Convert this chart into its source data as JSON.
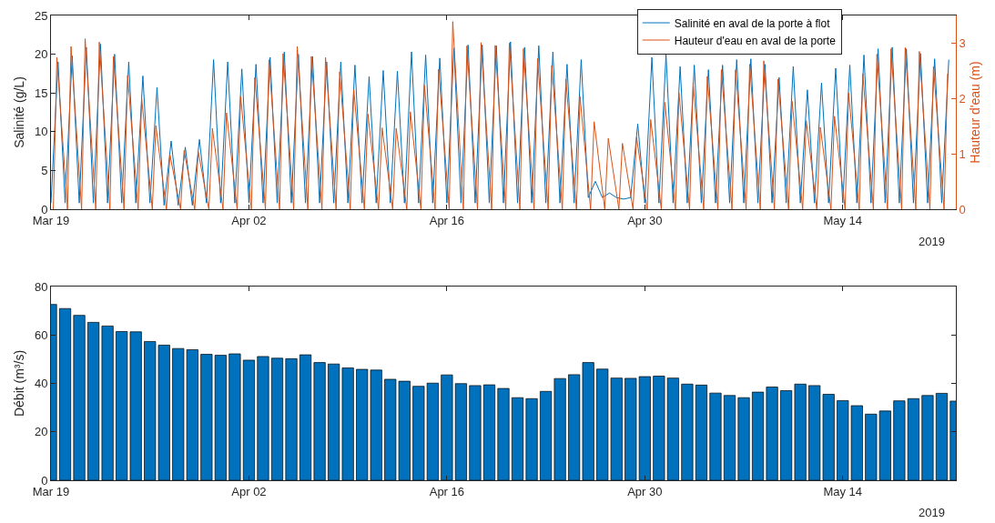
{
  "chart_data": [
    {
      "type": "line",
      "ylabel": "Salinité (g/L)",
      "y2label": "Hauteur d'eau (m)",
      "legend": "top right",
      "annotations": [
        "2019"
      ],
      "xlim": [
        "2019-03-19",
        "2019-05-22"
      ],
      "xticks": [
        {
          "value": "2019-03-19",
          "label": "Mar 19"
        },
        {
          "value": "2019-04-02",
          "label": "Apr 02"
        },
        {
          "value": "2019-04-16",
          "label": "Apr 16"
        },
        {
          "value": "2019-04-30",
          "label": "Apr 30"
        },
        {
          "value": "2019-05-14",
          "label": "May 14"
        }
      ],
      "ylim": [
        0,
        25
      ],
      "yticks": [
        0,
        5,
        10,
        15,
        20,
        25
      ],
      "y2lim": [
        0,
        3.5
      ],
      "y2ticks": [
        0,
        1,
        2,
        3
      ],
      "x": [
        "2019-03-19T00:00",
        "2019-03-19T12:00",
        "2019-03-20T00:00",
        "2019-03-20T12:00",
        "2019-03-21T00:00",
        "2019-03-21T12:00",
        "2019-03-22T00:00",
        "2019-03-22T12:00",
        "2019-03-23T00:00",
        "2019-03-23T12:00",
        "2019-03-24T00:00",
        "2019-03-24T12:00",
        "2019-03-25T00:00",
        "2019-03-25T12:00",
        "2019-03-26T00:00",
        "2019-03-26T12:00",
        "2019-03-27T00:00",
        "2019-03-27T12:00",
        "2019-03-28T00:00",
        "2019-03-28T12:00",
        "2019-03-29T00:00",
        "2019-03-29T12:00",
        "2019-03-30T00:00",
        "2019-03-30T12:00",
        "2019-03-31T00:00",
        "2019-03-31T12:00",
        "2019-04-01T00:00",
        "2019-04-01T12:00",
        "2019-04-02T00:00",
        "2019-04-02T12:00",
        "2019-04-03T00:00",
        "2019-04-03T12:00",
        "2019-04-04T00:00",
        "2019-04-04T12:00",
        "2019-04-05T00:00",
        "2019-04-05T12:00",
        "2019-04-06T00:00",
        "2019-04-06T12:00",
        "2019-04-07T00:00",
        "2019-04-07T12:00",
        "2019-04-08T00:00",
        "2019-04-08T12:00",
        "2019-04-09T00:00",
        "2019-04-09T12:00",
        "2019-04-10T00:00",
        "2019-04-10T12:00",
        "2019-04-11T00:00",
        "2019-04-11T12:00",
        "2019-04-12T00:00",
        "2019-04-12T12:00",
        "2019-04-13T00:00",
        "2019-04-13T12:00",
        "2019-04-14T00:00",
        "2019-04-14T12:00",
        "2019-04-15T00:00",
        "2019-04-15T12:00",
        "2019-04-16T00:00",
        "2019-04-16T12:00",
        "2019-04-17T00:00",
        "2019-04-17T12:00",
        "2019-04-18T00:00",
        "2019-04-18T12:00",
        "2019-04-19T00:00",
        "2019-04-19T12:00",
        "2019-04-20T00:00",
        "2019-04-20T12:00",
        "2019-04-21T00:00",
        "2019-04-21T12:00",
        "2019-04-22T00:00",
        "2019-04-22T12:00",
        "2019-04-23T00:00",
        "2019-04-23T12:00",
        "2019-04-24T00:00",
        "2019-04-24T12:00",
        "2019-04-25T00:00",
        "2019-04-25T12:00",
        "2019-04-26T00:00",
        "2019-04-26T12:00",
        "2019-04-27T00:00",
        "2019-04-27T12:00",
        "2019-04-28T00:00",
        "2019-04-28T12:00",
        "2019-04-29T00:00",
        "2019-04-29T12:00",
        "2019-04-30T00:00",
        "2019-04-30T12:00",
        "2019-05-01T00:00",
        "2019-05-01T12:00",
        "2019-05-02T00:00",
        "2019-05-02T12:00",
        "2019-05-03T00:00",
        "2019-05-03T12:00",
        "2019-05-04T00:00",
        "2019-05-04T12:00",
        "2019-05-05T00:00",
        "2019-05-05T12:00",
        "2019-05-06T00:00",
        "2019-05-06T12:00",
        "2019-05-07T00:00",
        "2019-05-07T12:00",
        "2019-05-08T00:00",
        "2019-05-08T12:00",
        "2019-05-09T00:00",
        "2019-05-09T12:00",
        "2019-05-10T00:00",
        "2019-05-10T12:00",
        "2019-05-11T00:00",
        "2019-05-11T12:00",
        "2019-05-12T00:00",
        "2019-05-12T12:00",
        "2019-05-13T00:00",
        "2019-05-13T12:00",
        "2019-05-14T00:00",
        "2019-05-14T12:00",
        "2019-05-15T00:00",
        "2019-05-15T12:00",
        "2019-05-16T00:00",
        "2019-05-16T12:00",
        "2019-05-17T00:00",
        "2019-05-17T12:00",
        "2019-05-18T00:00",
        "2019-05-18T12:00",
        "2019-05-19T00:00",
        "2019-05-19T12:00",
        "2019-05-20T00:00",
        "2019-05-20T12:00",
        "2019-05-21T00:00",
        "2019-05-21T12:00"
      ],
      "series": [
        {
          "name": "Salinité en aval de la porte à flot",
          "color": "#0072bd",
          "values": [
            0.8,
            19,
            0.8,
            19.8,
            0.8,
            20.9,
            0.8,
            21.3,
            0.8,
            20,
            0.8,
            19,
            0.8,
            17.2,
            0.8,
            15.7,
            0.5,
            8.8,
            0.5,
            8,
            0.5,
            9,
            0.8,
            19.3,
            0.8,
            19,
            0.8,
            18.1,
            0.8,
            18.7,
            0.8,
            19.6,
            0.8,
            20.3,
            0.8,
            20,
            0.8,
            19.7,
            0.8,
            19,
            0.8,
            19,
            0.8,
            18.6,
            0.8,
            17.1,
            0.8,
            17.9,
            0.8,
            17.8,
            0.8,
            20.3,
            0.8,
            19.9,
            0.8,
            19.5,
            0.8,
            20.8,
            0.8,
            21.2,
            0.8,
            21.2,
            0.8,
            21.1,
            0.8,
            21.6,
            0.8,
            20.9,
            0.8,
            21.1,
            0.8,
            20.3,
            0.8,
            18.7,
            0.8,
            19.3,
            1.5,
            3.6,
            1.5,
            2.1,
            1.5,
            1.3,
            1.5,
            11,
            0.8,
            19.6,
            0.8,
            20,
            0.8,
            18.4,
            0.8,
            18.6,
            0.8,
            18,
            0.8,
            18.6,
            0.8,
            19.3,
            0.8,
            19.4,
            0.8,
            18.7,
            0.8,
            17,
            0.8,
            18.4,
            0.8,
            15.4,
            0.8,
            16.3,
            0.8,
            18.2,
            0.8,
            18.6,
            0.8,
            19.9,
            0.8,
            20.7,
            0.8,
            20.9,
            0.8,
            20.7,
            0.8,
            20.1,
            0.8,
            19.4,
            0.8,
            19.3
          ]
        },
        {
          "name": "Hauteur d'eau en aval de la porte",
          "color": "#d95319",
          "axis": "y2",
          "x": [
            "2019-03-19T04:00",
            "2019-03-19T10:00",
            "2019-03-20T04:00",
            "2019-03-20T10:00",
            "2019-03-21T04:00",
            "2019-03-21T10:00",
            "2019-03-22T04:00",
            "2019-03-22T10:00",
            "2019-03-23T04:00",
            "2019-03-23T10:00",
            "2019-03-24T04:00",
            "2019-03-24T10:00",
            "2019-03-25T04:00",
            "2019-03-25T10:00",
            "2019-03-26T04:00",
            "2019-03-26T10:00",
            "2019-03-27T04:00",
            "2019-03-27T10:00",
            "2019-03-28T04:00",
            "2019-03-28T10:00",
            "2019-03-29T04:00",
            "2019-03-29T10:00",
            "2019-03-30T04:00",
            "2019-03-30T10:00",
            "2019-03-31T04:00",
            "2019-03-31T10:00",
            "2019-04-01T04:00",
            "2019-04-01T10:00",
            "2019-04-02T04:00",
            "2019-04-02T10:00",
            "2019-04-03T04:00",
            "2019-04-03T10:00",
            "2019-04-04T04:00",
            "2019-04-04T10:00",
            "2019-04-05T04:00",
            "2019-04-05T10:00",
            "2019-04-06T04:00",
            "2019-04-06T10:00",
            "2019-04-07T04:00",
            "2019-04-07T10:00",
            "2019-04-08T04:00",
            "2019-04-08T10:00",
            "2019-04-09T04:00",
            "2019-04-09T10:00",
            "2019-04-10T04:00",
            "2019-04-10T10:00",
            "2019-04-11T04:00",
            "2019-04-11T10:00",
            "2019-04-12T04:00",
            "2019-04-12T10:00",
            "2019-04-13T04:00",
            "2019-04-13T10:00",
            "2019-04-14T04:00",
            "2019-04-14T10:00",
            "2019-04-15T04:00",
            "2019-04-15T10:00",
            "2019-04-16T04:00",
            "2019-04-16T10:00",
            "2019-04-17T04:00",
            "2019-04-17T10:00",
            "2019-04-18T04:00",
            "2019-04-18T10:00",
            "2019-04-19T04:00",
            "2019-04-19T10:00",
            "2019-04-20T04:00",
            "2019-04-20T10:00",
            "2019-04-21T04:00",
            "2019-04-21T10:00",
            "2019-04-22T04:00",
            "2019-04-22T10:00",
            "2019-04-23T04:00",
            "2019-04-23T10:00",
            "2019-04-24T04:00",
            "2019-04-24T10:00",
            "2019-04-25T04:00",
            "2019-04-25T10:00",
            "2019-04-26T04:00",
            "2019-04-26T10:00",
            "2019-04-27T04:00",
            "2019-04-27T10:00",
            "2019-04-28T04:00",
            "2019-04-28T10:00",
            "2019-04-29T04:00",
            "2019-04-29T10:00",
            "2019-04-30T04:00",
            "2019-04-30T10:00",
            "2019-05-01T04:00",
            "2019-05-01T10:00",
            "2019-05-02T04:00",
            "2019-05-02T10:00",
            "2019-05-03T04:00",
            "2019-05-03T10:00",
            "2019-05-04T04:00",
            "2019-05-04T10:00",
            "2019-05-05T04:00",
            "2019-05-05T10:00",
            "2019-05-06T04:00",
            "2019-05-06T10:00",
            "2019-05-07T04:00",
            "2019-05-07T10:00",
            "2019-05-08T04:00",
            "2019-05-08T10:00",
            "2019-05-09T04:00",
            "2019-05-09T10:00",
            "2019-05-10T04:00",
            "2019-05-10T10:00",
            "2019-05-11T04:00",
            "2019-05-11T10:00",
            "2019-05-12T04:00",
            "2019-05-12T10:00",
            "2019-05-13T04:00",
            "2019-05-13T10:00",
            "2019-05-14T04:00",
            "2019-05-14T10:00",
            "2019-05-15T04:00",
            "2019-05-15T10:00",
            "2019-05-16T04:00",
            "2019-05-16T10:00",
            "2019-05-17T04:00",
            "2019-05-17T10:00",
            "2019-05-18T04:00",
            "2019-05-18T10:00",
            "2019-05-19T04:00",
            "2019-05-19T10:00",
            "2019-05-20T04:00",
            "2019-05-20T10:00",
            "2019-05-21T04:00",
            "2019-05-21T10:00"
          ],
          "values": [
            0,
            2.74,
            0,
            2.94,
            0,
            3.08,
            0,
            3.02,
            0,
            2.76,
            0,
            2.42,
            0,
            2.0,
            0,
            1.51,
            0,
            0.98,
            0,
            1.06,
            0,
            1.04,
            0,
            1.46,
            0,
            1.74,
            0,
            2.04,
            0,
            2.38,
            0,
            2.7,
            0,
            2.81,
            0,
            2.94,
            0,
            2.76,
            0,
            2.74,
            0,
            2.48,
            0,
            2.16,
            0,
            1.72,
            0,
            1.47,
            0,
            1.46,
            0,
            1.76,
            0,
            2.24,
            0,
            2.53,
            0,
            3.39,
            0,
            2.95,
            0,
            3.01,
            0,
            2.96,
            0,
            3.0,
            0,
            2.9,
            0,
            2.72,
            0,
            2.6,
            0,
            2.35,
            0,
            2.04,
            0,
            1.58,
            0,
            1.28,
            0,
            1.19,
            0,
            1.3,
            0,
            1.62,
            0,
            1.93,
            0,
            2.1,
            0,
            2.28,
            0,
            2.4,
            0,
            2.52,
            0,
            2.52,
            0,
            2.62,
            0,
            2.68,
            0,
            2.35,
            0,
            1.95,
            0,
            1.6,
            0,
            1.48,
            0,
            1.68,
            0,
            2.1,
            0,
            2.45,
            0,
            2.8,
            0,
            2.9,
            0,
            2.92,
            0,
            2.85,
            0,
            2.58,
            0,
            2.45
          ]
        }
      ]
    },
    {
      "type": "bar",
      "ylabel": "Débit (m³/s)",
      "annotations": [
        "2019"
      ],
      "color": "#0072bd",
      "xlim": [
        "2019-03-19",
        "2019-05-22"
      ],
      "xticks": [
        {
          "value": "2019-03-19",
          "label": "Mar 19"
        },
        {
          "value": "2019-04-02",
          "label": "Apr 02"
        },
        {
          "value": "2019-04-16",
          "label": "Apr 16"
        },
        {
          "value": "2019-04-30",
          "label": "Apr 30"
        },
        {
          "value": "2019-05-14",
          "label": "May 14"
        }
      ],
      "ylim": [
        0,
        80
      ],
      "yticks": [
        0,
        20,
        40,
        60,
        80
      ],
      "x": [
        "2019-03-19",
        "2019-03-20",
        "2019-03-21",
        "2019-03-22",
        "2019-03-23",
        "2019-03-24",
        "2019-03-25",
        "2019-03-26",
        "2019-03-27",
        "2019-03-28",
        "2019-03-29",
        "2019-03-30",
        "2019-03-31",
        "2019-04-01",
        "2019-04-02",
        "2019-04-03",
        "2019-04-04",
        "2019-04-05",
        "2019-04-06",
        "2019-04-07",
        "2019-04-08",
        "2019-04-09",
        "2019-04-10",
        "2019-04-11",
        "2019-04-12",
        "2019-04-13",
        "2019-04-14",
        "2019-04-15",
        "2019-04-16",
        "2019-04-17",
        "2019-04-18",
        "2019-04-19",
        "2019-04-20",
        "2019-04-21",
        "2019-04-22",
        "2019-04-23",
        "2019-04-24",
        "2019-04-25",
        "2019-04-26",
        "2019-04-27",
        "2019-04-28",
        "2019-04-29",
        "2019-04-30",
        "2019-05-01",
        "2019-05-02",
        "2019-05-03",
        "2019-05-04",
        "2019-05-05",
        "2019-05-06",
        "2019-05-07",
        "2019-05-08",
        "2019-05-09",
        "2019-05-10",
        "2019-05-11",
        "2019-05-12",
        "2019-05-13",
        "2019-05-14",
        "2019-05-15",
        "2019-05-16",
        "2019-05-17",
        "2019-05-18",
        "2019-05-19",
        "2019-05-20",
        "2019-05-21",
        "2019-05-22"
      ],
      "values": [
        72.6,
        70.9,
        68.1,
        65.2,
        63.7,
        61.4,
        61.3,
        57.3,
        55.8,
        54.4,
        53.9,
        52.0,
        51.6,
        52.2,
        49.6,
        51.1,
        50.4,
        50.2,
        51.8,
        48.6,
        48.0,
        46.4,
        45.8,
        45.5,
        41.7,
        40.9,
        38.8,
        40.1,
        43.5,
        39.9,
        39.1,
        39.4,
        37.9,
        34.1,
        33.7,
        36.7,
        42.0,
        43.6,
        48.6,
        45.9,
        42.2,
        42.1,
        42.8,
        43.0,
        42.2,
        39.7,
        39.3,
        36.0,
        35.0,
        34.1,
        36.4,
        38.5,
        37.0,
        39.7,
        39.1,
        35.5,
        32.9,
        30.8,
        27.3,
        28.6,
        32.8,
        33.7,
        35.0,
        35.9,
        32.7
      ]
    }
  ]
}
